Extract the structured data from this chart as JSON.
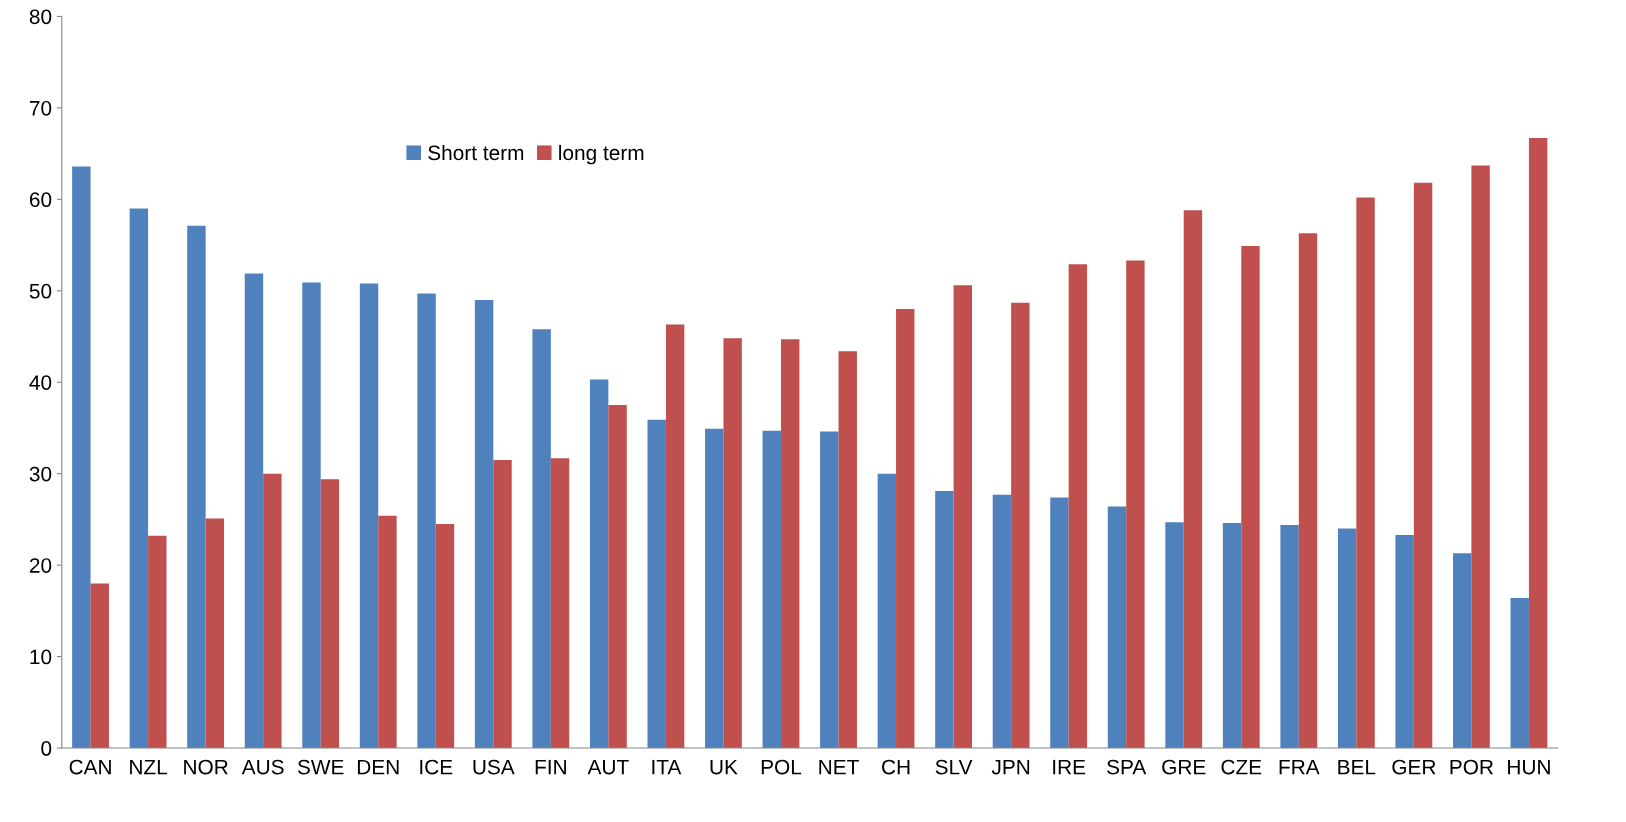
{
  "chart_data": {
    "type": "bar",
    "categories": [
      "CAN",
      "NZL",
      "NOR",
      "AUS",
      "SWE",
      "DEN",
      "ICE",
      "USA",
      "FIN",
      "AUT",
      "ITA",
      "UK",
      "POL",
      "NET",
      "CH",
      "SLV",
      "JPN",
      "IRE",
      "SPA",
      "GRE",
      "CZE",
      "FRA",
      "BEL",
      "GER",
      "POR",
      "HUN"
    ],
    "series": [
      {
        "name": "Short term",
        "color": "#4f81bd",
        "values": [
          63.6,
          59.0,
          57.1,
          51.9,
          50.9,
          50.8,
          49.7,
          49.0,
          45.8,
          40.3,
          35.9,
          34.9,
          34.7,
          34.6,
          30.0,
          28.1,
          27.7,
          27.4,
          26.4,
          24.7,
          24.6,
          24.4,
          24.0,
          23.3,
          21.3,
          16.4
        ]
      },
      {
        "name": "long term",
        "color": "#c0504d",
        "values": [
          18.0,
          23.2,
          25.1,
          30.0,
          29.4,
          25.4,
          24.5,
          31.5,
          31.7,
          37.5,
          46.3,
          44.8,
          44.7,
          43.4,
          48.0,
          50.6,
          48.7,
          52.9,
          53.3,
          58.8,
          54.9,
          56.3,
          60.2,
          61.8,
          63.7,
          66.7
        ]
      }
    ],
    "ylim": [
      0,
      80
    ],
    "yticks": [
      0,
      10,
      20,
      30,
      40,
      50,
      60,
      70,
      80
    ],
    "grid": false,
    "legend": "top"
  }
}
